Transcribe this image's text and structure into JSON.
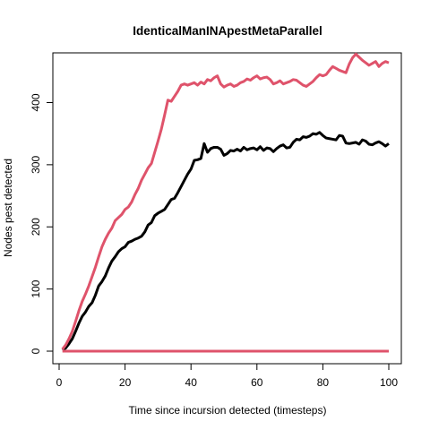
{
  "chart_data": {
    "type": "line",
    "title": "IdenticalManINApestMetaParallel",
    "xlabel": "Time since incursion detected (timesteps)",
    "ylabel": "Nodes pest detected",
    "xlim": [
      1,
      100
    ],
    "ylim": [
      0,
      480
    ],
    "x_ticks": [
      0,
      20,
      40,
      60,
      80,
      100
    ],
    "y_ticks": [
      0,
      100,
      200,
      300,
      400
    ],
    "grid": false,
    "legend": "none",
    "x": [
      1,
      2,
      3,
      4,
      5,
      6,
      7,
      8,
      9,
      10,
      11,
      12,
      13,
      14,
      15,
      16,
      17,
      18,
      19,
      20,
      21,
      22,
      23,
      24,
      25,
      26,
      27,
      28,
      29,
      30,
      31,
      32,
      33,
      34,
      35,
      36,
      37,
      38,
      39,
      40,
      41,
      42,
      43,
      44,
      45,
      46,
      47,
      48,
      49,
      50,
      51,
      52,
      53,
      54,
      55,
      56,
      57,
      58,
      59,
      60,
      61,
      62,
      63,
      64,
      65,
      66,
      67,
      68,
      69,
      70,
      71,
      72,
      73,
      74,
      75,
      76,
      77,
      78,
      79,
      80,
      81,
      82,
      83,
      84,
      85,
      86,
      87,
      88,
      89,
      90,
      91,
      92,
      93,
      94,
      95,
      96,
      97,
      98,
      99,
      100
    ],
    "series": [
      {
        "color": "#000000",
        "values": [
          2,
          5,
          12,
          20,
          32,
          45,
          56,
          63,
          72,
          78,
          90,
          105,
          112,
          121,
          134,
          145,
          152,
          160,
          165,
          168,
          175,
          177,
          180,
          182,
          185,
          192,
          203,
          207,
          218,
          222,
          225,
          228,
          236,
          244,
          246,
          255,
          265,
          275,
          285,
          293,
          307,
          308,
          310,
          334,
          320,
          326,
          328,
          328,
          325,
          315,
          318,
          323,
          322,
          325,
          322,
          328,
          324,
          326,
          327,
          324,
          329,
          323,
          327,
          326,
          321,
          326,
          330,
          332,
          327,
          328,
          336,
          341,
          340,
          345,
          344,
          346,
          350,
          349,
          352,
          347,
          343,
          342,
          341,
          340,
          347,
          346,
          335,
          334,
          335,
          336,
          333,
          340,
          338,
          333,
          332,
          335,
          337,
          334,
          330,
          334
        ]
      },
      {
        "color": "#DF536B",
        "values": [
          3,
          10,
          20,
          32,
          48,
          65,
          80,
          92,
          105,
          120,
          135,
          152,
          168,
          180,
          190,
          198,
          210,
          215,
          220,
          228,
          232,
          240,
          252,
          262,
          275,
          285,
          295,
          302,
          320,
          338,
          357,
          380,
          404,
          402,
          410,
          418,
          428,
          430,
          428,
          430,
          432,
          428,
          433,
          430,
          437,
          435,
          440,
          443,
          430,
          425,
          428,
          430,
          426,
          428,
          432,
          434,
          438,
          436,
          440,
          443,
          438,
          440,
          441,
          437,
          430,
          432,
          435,
          430,
          432,
          434,
          437,
          436,
          432,
          428,
          426,
          430,
          434,
          440,
          445,
          443,
          445,
          452,
          458,
          455,
          452,
          450,
          448,
          462,
          472,
          478,
          473,
          468,
          464,
          460,
          463,
          466,
          458,
          463,
          466,
          464
        ]
      },
      {
        "color": "#DF536B",
        "values": [
          0,
          0,
          0,
          0,
          0,
          0,
          0,
          0,
          0,
          0,
          0,
          0,
          0,
          0,
          0,
          0,
          0,
          0,
          0,
          0,
          0,
          0,
          0,
          0,
          0,
          0,
          0,
          0,
          0,
          0,
          0,
          0,
          0,
          0,
          0,
          0,
          0,
          0,
          0,
          0,
          0,
          0,
          0,
          0,
          0,
          0,
          0,
          0,
          0,
          0,
          0,
          0,
          0,
          0,
          0,
          0,
          0,
          0,
          0,
          0,
          0,
          0,
          0,
          0,
          0,
          0,
          0,
          0,
          0,
          0,
          0,
          0,
          0,
          0,
          0,
          0,
          0,
          0,
          0,
          0,
          0,
          0,
          0,
          0,
          0,
          0,
          0,
          0,
          0,
          0,
          0,
          0,
          0,
          0,
          0,
          0,
          0,
          0,
          0,
          0
        ]
      }
    ]
  }
}
